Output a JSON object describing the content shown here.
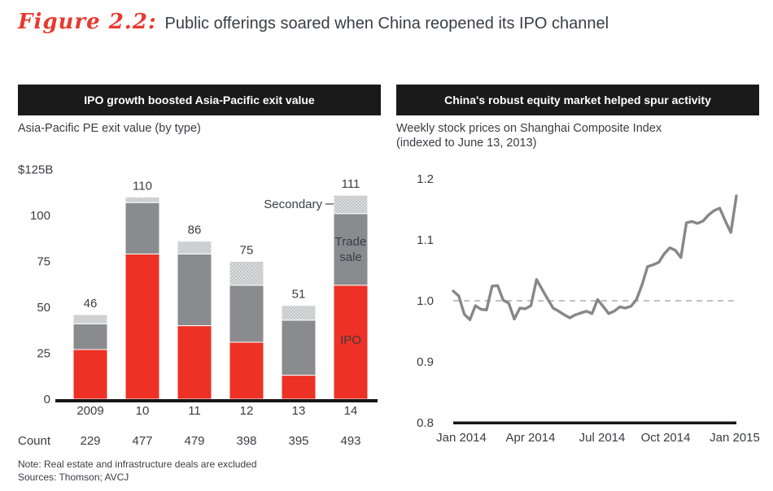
{
  "title": {
    "figure_label": "Figure 2.2:",
    "text": "Public offerings soared when China reopened its IPO channel"
  },
  "left_panel": {
    "header": "IPO growth boosted Asia-Pacific exit value",
    "subtitle": "Asia-Pacific PE exit value (by type)"
  },
  "right_panel": {
    "header": "China's robust equity market helped spur activity",
    "subtitle_line1": "Weekly stock prices on Shanghai Composite Index",
    "subtitle_line2": "(indexed to June 13, 2013)"
  },
  "footnote": {
    "note": "Note: Real estate and infrastructure deals are excluded",
    "sources": "Sources: Thomson; AVCJ"
  },
  "colors": {
    "accent_red": "#ed3124",
    "trade_gray": "#8a8b8e",
    "secondary_gray": "#bcbdc0",
    "line_gray": "#87878b",
    "header_bg": "#1a1a1a",
    "axis_black": "#161616",
    "dashed_ref": "#9a9a9a",
    "text": "#3b3c45"
  },
  "chart_data": [
    {
      "type": "bar",
      "stacked": true,
      "title": "IPO growth boosted Asia-Pacific exit value",
      "subtitle": "Asia-Pacific PE exit value (by type)",
      "categories": [
        "2009",
        "10",
        "11",
        "12",
        "13",
        "14"
      ],
      "series": [
        {
          "name": "IPO",
          "color": "#ed3124",
          "values": [
            27,
            79,
            40,
            31,
            13,
            62
          ]
        },
        {
          "name": "Trade sale",
          "color": "#8a8b8e",
          "values": [
            14,
            28,
            39,
            31,
            30,
            39
          ]
        },
        {
          "name": "Secondary",
          "color": "#bcbdc0",
          "hatched": true,
          "values": [
            5,
            3,
            7,
            13,
            8,
            10
          ]
        }
      ],
      "totals": [
        46,
        110,
        86,
        75,
        51,
        111
      ],
      "count_row": {
        "label": "Count",
        "values": [
          229,
          477,
          479,
          398,
          395,
          493
        ]
      },
      "ylabel_top": "$125B",
      "yticks": [
        0,
        25,
        50,
        75,
        100
      ],
      "ylim": [
        0,
        125
      ],
      "grid": false,
      "legend": "labels annotated on 2014 bar: Secondary (callout), Trade sale (inside), IPO (inside)"
    },
    {
      "type": "line",
      "title": "China's robust equity market helped spur activity",
      "subtitle": "Weekly stock prices on Shanghai Composite Index (indexed to June 13, 2013)",
      "x_tick_labels": [
        "Jan 2014",
        "Apr 2014",
        "Jul 2014",
        "Oct 2014",
        "Jan 2015"
      ],
      "x_range_weeks": 52,
      "yticks": [
        0.8,
        0.9,
        1.0,
        1.1,
        1.2
      ],
      "ylim": [
        0.8,
        1.2
      ],
      "reference_line": 1.0,
      "grid": false,
      "values": [
        1.016,
        1.008,
        0.978,
        0.969,
        0.992,
        0.986,
        0.985,
        1.024,
        1.025,
        1.001,
        0.996,
        0.97,
        0.988,
        0.987,
        0.992,
        1.035,
        1.019,
        1.003,
        0.988,
        0.983,
        0.977,
        0.972,
        0.977,
        0.98,
        0.983,
        0.979,
        1.002,
        0.991,
        0.979,
        0.983,
        0.99,
        0.988,
        0.991,
        1.002,
        1.026,
        1.056,
        1.059,
        1.063,
        1.077,
        1.087,
        1.083,
        1.071,
        1.128,
        1.13,
        1.127,
        1.131,
        1.141,
        1.148,
        1.152,
        1.131,
        1.112,
        1.172
      ]
    }
  ]
}
